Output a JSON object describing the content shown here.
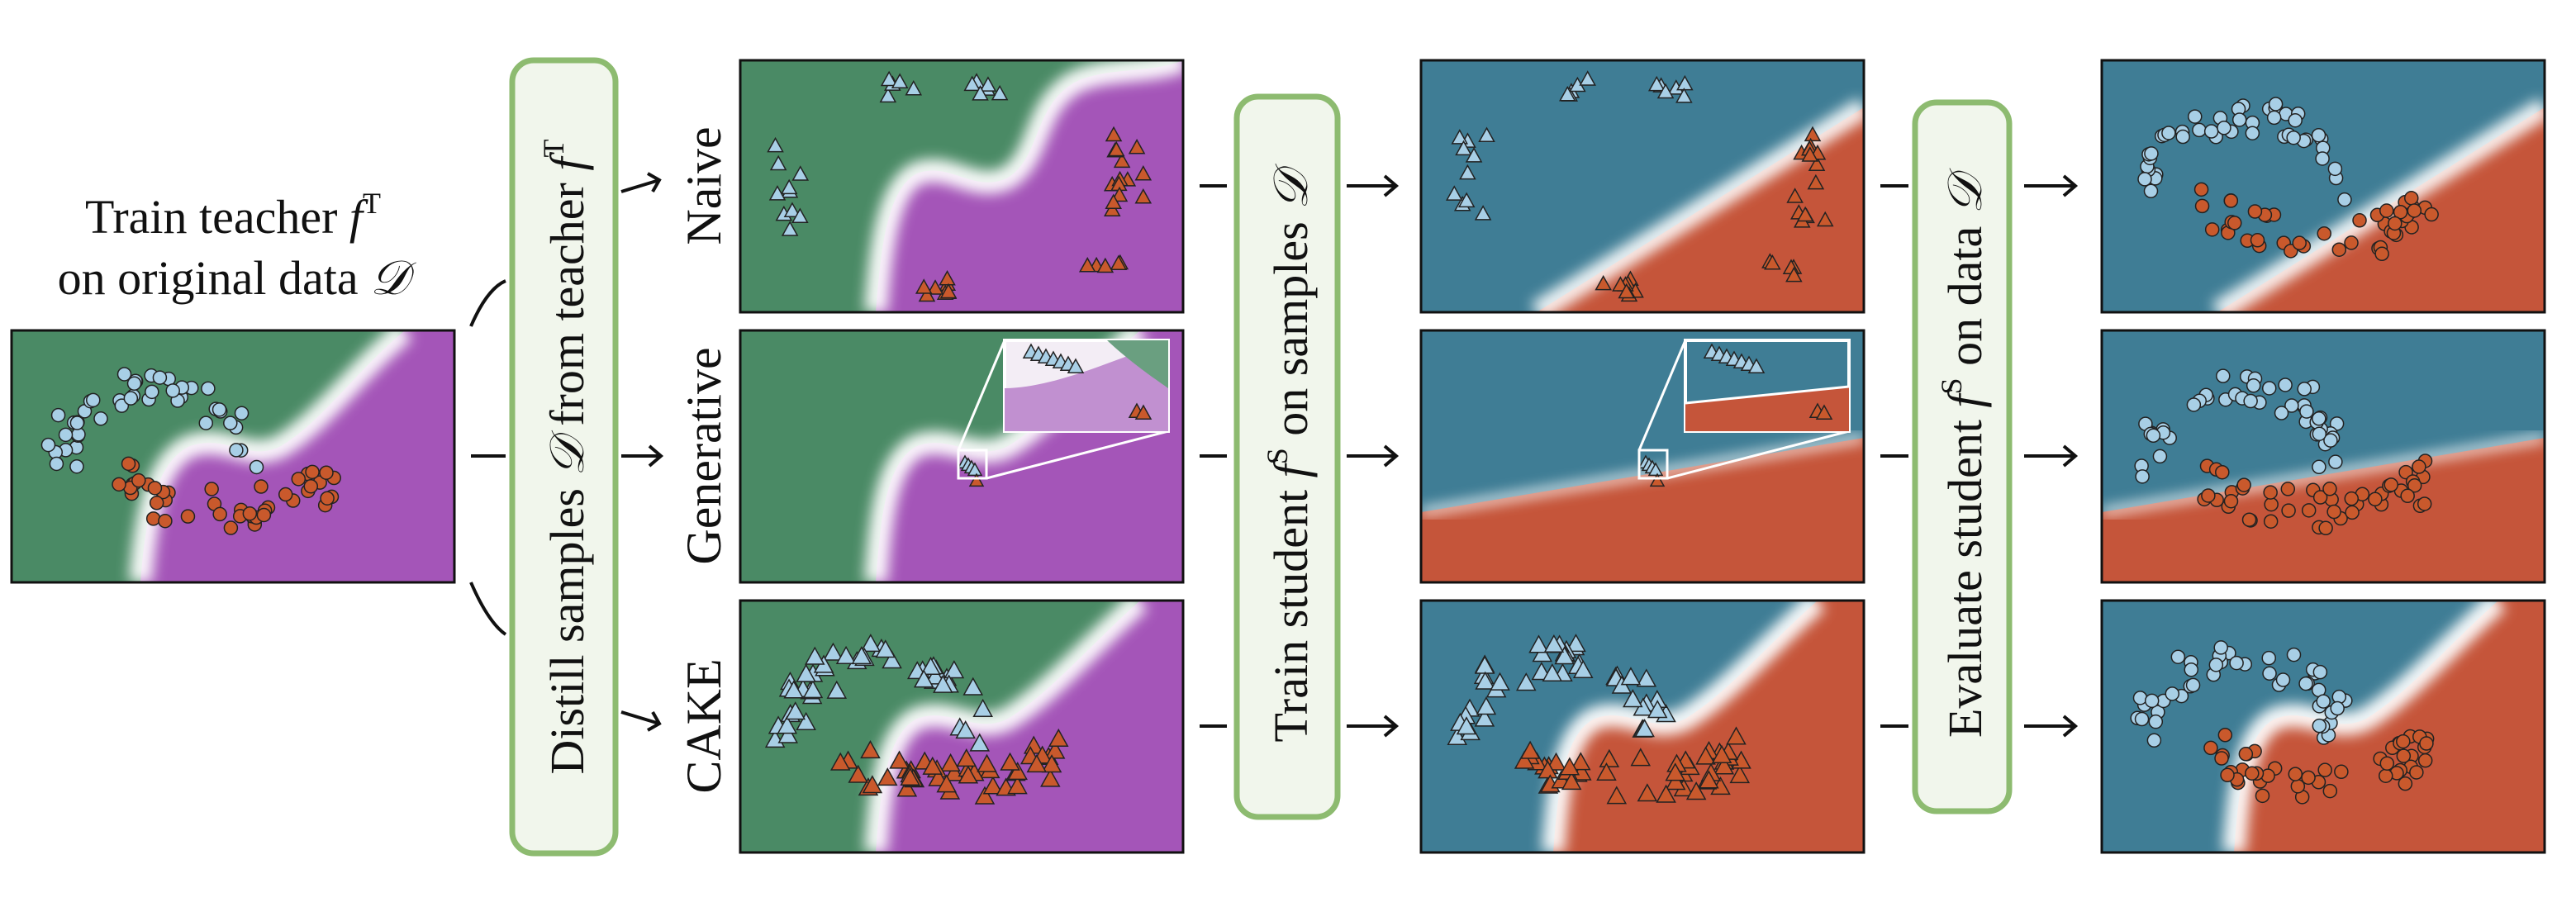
{
  "teacher": {
    "line1_prefix": "Train teacher ",
    "line1_sym": "f",
    "line1_sup": "T",
    "line2_prefix": "on original data ",
    "line2_sym": "𝒟"
  },
  "distill": {
    "prefix": "Distill samples ",
    "sym": "𝒟",
    "middle": " from teacher ",
    "f": "f",
    "sup": "T"
  },
  "train": {
    "prefix": "Train student ",
    "f": "f",
    "sup": "S",
    "middle": " on samples ",
    "sym": "𝒟"
  },
  "evaluate": {
    "prefix": "Evaluate student ",
    "f": "f",
    "sup": "S",
    "middle": " on data ",
    "sym": "𝒟"
  },
  "methods": [
    "Naive",
    "Generative",
    "CAKE"
  ],
  "colors": {
    "teacher_class_a": "#4a8a65",
    "teacher_class_b": "#a455b8",
    "student_class_a": "#3f7d95",
    "student_class_b": "#c5553a",
    "point_light": "#a8cfe6",
    "point_dark": "#c9592c",
    "box_border": "#8dbb70",
    "box_fill": "#f1f6ec"
  }
}
